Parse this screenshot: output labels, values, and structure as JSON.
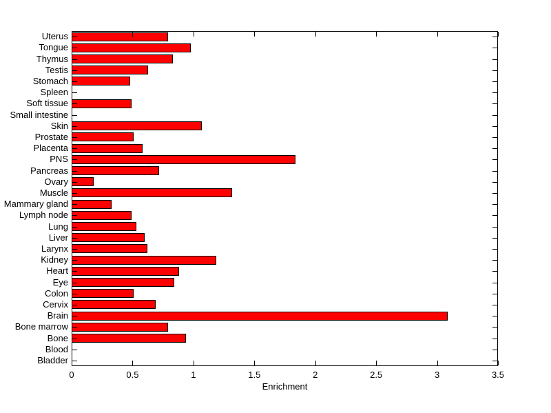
{
  "chart_data": {
    "type": "bar",
    "orientation": "horizontal",
    "title": "",
    "xlabel": "Enrichment",
    "ylabel": "",
    "xlim": [
      0,
      3.5
    ],
    "xtick_values": [
      0,
      0.5,
      1,
      1.5,
      2,
      2.5,
      3,
      3.5
    ],
    "xtick_labels": [
      "0",
      "0.5",
      "1",
      "1.5",
      "2",
      "2.5",
      "3",
      "3.5"
    ],
    "grid": false,
    "legend": null,
    "bar_color": "#FF0000",
    "bar_edge_color": "#000000",
    "axis_color": "#000000",
    "background_color": "#FFFFFF",
    "categories": [
      "Uterus",
      "Tongue",
      "Thymus",
      "Testis",
      "Stomach",
      "Spleen",
      "Soft tissue",
      "Small intestine",
      "Skin",
      "Prostate",
      "Placenta",
      "PNS",
      "Pancreas",
      "Ovary",
      "Muscle",
      "Mammary gland",
      "Lymph node",
      "Lung",
      "Liver",
      "Larynx",
      "Kidney",
      "Heart",
      "Eye",
      "Colon",
      "Cervix",
      "Brain",
      "Bone marrow",
      "Bone",
      "Blood",
      "Bladder"
    ],
    "values": [
      0.79,
      0.98,
      0.83,
      0.63,
      0.48,
      0,
      0.49,
      0,
      1.07,
      0.51,
      0.58,
      1.84,
      0.72,
      0.18,
      1.32,
      0.33,
      0.49,
      0.53,
      0.6,
      0.62,
      1.19,
      0.88,
      0.84,
      0.51,
      0.69,
      3.09,
      0.79,
      0.94,
      0,
      0
    ]
  }
}
